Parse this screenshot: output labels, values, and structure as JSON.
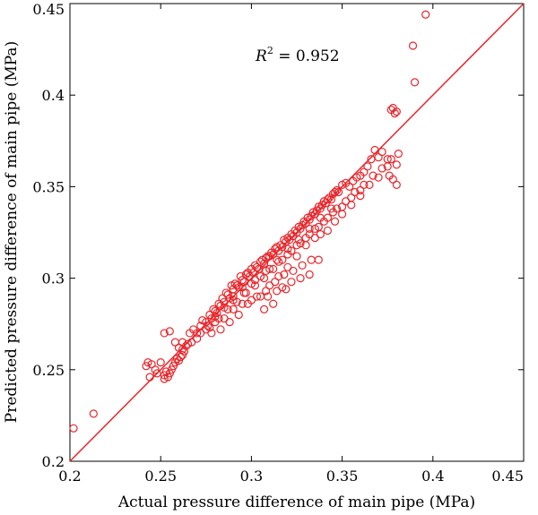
{
  "chart_data": {
    "type": "scatter",
    "title": "",
    "xlabel": "Actual pressure difference of main pipe (MPa)",
    "ylabel": "Predicted pressure difference of main pipe (MPa)",
    "xlim": [
      0.2,
      0.45
    ],
    "ylim": [
      0.2,
      0.45
    ],
    "xticks": [
      "0.2",
      "0.25",
      "0.3",
      "0.35",
      "0.4",
      "0.45"
    ],
    "yticks": [
      "0.2",
      "0.25",
      "0.3",
      "0.35",
      "0.4",
      "0.45"
    ],
    "grid": false,
    "annotation": {
      "prefix": "R",
      "superscript": "2",
      "suffix": " = 0.952"
    },
    "colors": {
      "points": "#e8262b",
      "reference_line": "#e8262b"
    },
    "reference_line": {
      "from": [
        0.2,
        0.2
      ],
      "to": [
        0.45,
        0.45
      ]
    },
    "series": [
      {
        "marker": "open-circle",
        "x": [
          0.202,
          0.213,
          0.242,
          0.243,
          0.245,
          0.244,
          0.247,
          0.248,
          0.25,
          0.252,
          0.252,
          0.253,
          0.254,
          0.255,
          0.256,
          0.257,
          0.258,
          0.259,
          0.26,
          0.261,
          0.262,
          0.263,
          0.252,
          0.255,
          0.258,
          0.26,
          0.262,
          0.264,
          0.266,
          0.268,
          0.27,
          0.272,
          0.273,
          0.275,
          0.276,
          0.277,
          0.278,
          0.279,
          0.28,
          0.281,
          0.282,
          0.283,
          0.284,
          0.285,
          0.286,
          0.287,
          0.288,
          0.289,
          0.29,
          0.291,
          0.292,
          0.293,
          0.294,
          0.295,
          0.296,
          0.297,
          0.298,
          0.299,
          0.3,
          0.301,
          0.302,
          0.303,
          0.304,
          0.305,
          0.306,
          0.307,
          0.308,
          0.309,
          0.31,
          0.311,
          0.312,
          0.313,
          0.314,
          0.315,
          0.316,
          0.317,
          0.318,
          0.319,
          0.32,
          0.321,
          0.322,
          0.323,
          0.324,
          0.325,
          0.326,
          0.327,
          0.328,
          0.329,
          0.33,
          0.331,
          0.332,
          0.333,
          0.334,
          0.335,
          0.336,
          0.337,
          0.338,
          0.339,
          0.34,
          0.341,
          0.342,
          0.343,
          0.344,
          0.345,
          0.346,
          0.347,
          0.348,
          0.35,
          0.352,
          0.354,
          0.356,
          0.358,
          0.36,
          0.362,
          0.364,
          0.366,
          0.368,
          0.37,
          0.372,
          0.375,
          0.377,
          0.378,
          0.379,
          0.38,
          0.381,
          0.375,
          0.376,
          0.378,
          0.38,
          0.38,
          0.389,
          0.39,
          0.396,
          0.28,
          0.285,
          0.29,
          0.295,
          0.3,
          0.305,
          0.31,
          0.315,
          0.32,
          0.325,
          0.33,
          0.335,
          0.338,
          0.342,
          0.346,
          0.35,
          0.355,
          0.36,
          0.365,
          0.37,
          0.278,
          0.283,
          0.288,
          0.293,
          0.298,
          0.303,
          0.308,
          0.313,
          0.318,
          0.323,
          0.328,
          0.333,
          0.307,
          0.312,
          0.317,
          0.322,
          0.327,
          0.332,
          0.337,
          0.309,
          0.314,
          0.319,
          0.265,
          0.27,
          0.275,
          0.28,
          0.285,
          0.29,
          0.295,
          0.3,
          0.305,
          0.31,
          0.315,
          0.32,
          0.325,
          0.33,
          0.335,
          0.34,
          0.345,
          0.35,
          0.355,
          0.36,
          0.262,
          0.267,
          0.272,
          0.277,
          0.282,
          0.287,
          0.292,
          0.297,
          0.302,
          0.307,
          0.312,
          0.317,
          0.322,
          0.327,
          0.332,
          0.337,
          0.342,
          0.347,
          0.352,
          0.357,
          0.362,
          0.367,
          0.372,
          0.377,
          0.29,
          0.296,
          0.302,
          0.308,
          0.314,
          0.32,
          0.326,
          0.332,
          0.338,
          0.344
        ],
        "y": [
          0.218,
          0.226,
          0.252,
          0.254,
          0.253,
          0.246,
          0.25,
          0.248,
          0.254,
          0.245,
          0.247,
          0.249,
          0.246,
          0.248,
          0.25,
          0.252,
          0.254,
          0.256,
          0.255,
          0.257,
          0.258,
          0.26,
          0.27,
          0.271,
          0.265,
          0.262,
          0.265,
          0.263,
          0.27,
          0.272,
          0.27,
          0.274,
          0.277,
          0.276,
          0.274,
          0.28,
          0.278,
          0.283,
          0.282,
          0.281,
          0.286,
          0.285,
          0.289,
          0.287,
          0.292,
          0.291,
          0.289,
          0.296,
          0.294,
          0.297,
          0.296,
          0.295,
          0.301,
          0.299,
          0.298,
          0.302,
          0.303,
          0.301,
          0.305,
          0.303,
          0.307,
          0.306,
          0.305,
          0.309,
          0.31,
          0.308,
          0.311,
          0.312,
          0.312,
          0.314,
          0.313,
          0.316,
          0.317,
          0.315,
          0.318,
          0.317,
          0.321,
          0.32,
          0.322,
          0.321,
          0.324,
          0.323,
          0.326,
          0.325,
          0.328,
          0.327,
          0.329,
          0.331,
          0.33,
          0.333,
          0.332,
          0.334,
          0.336,
          0.335,
          0.337,
          0.339,
          0.338,
          0.34,
          0.342,
          0.341,
          0.343,
          0.344,
          0.343,
          0.346,
          0.347,
          0.348,
          0.347,
          0.351,
          0.352,
          0.35,
          0.353,
          0.355,
          0.356,
          0.358,
          0.361,
          0.365,
          0.37,
          0.366,
          0.369,
          0.365,
          0.392,
          0.393,
          0.39,
          0.391,
          0.368,
          0.361,
          0.356,
          0.354,
          0.362,
          0.351,
          0.427,
          0.407,
          0.444,
          0.276,
          0.278,
          0.283,
          0.286,
          0.288,
          0.29,
          0.296,
          0.301,
          0.306,
          0.312,
          0.318,
          0.322,
          0.324,
          0.326,
          0.331,
          0.335,
          0.34,
          0.345,
          0.351,
          0.355,
          0.27,
          0.272,
          0.276,
          0.28,
          0.286,
          0.29,
          0.293,
          0.298,
          0.302,
          0.304,
          0.307,
          0.31,
          0.283,
          0.286,
          0.295,
          0.298,
          0.3,
          0.302,
          0.31,
          0.29,
          0.293,
          0.294,
          0.264,
          0.267,
          0.272,
          0.279,
          0.284,
          0.29,
          0.295,
          0.297,
          0.301,
          0.305,
          0.309,
          0.313,
          0.318,
          0.322,
          0.327,
          0.331,
          0.336,
          0.339,
          0.344,
          0.348,
          0.261,
          0.265,
          0.27,
          0.273,
          0.278,
          0.283,
          0.287,
          0.292,
          0.296,
          0.3,
          0.305,
          0.31,
          0.315,
          0.319,
          0.324,
          0.328,
          0.333,
          0.338,
          0.342,
          0.347,
          0.351,
          0.356,
          0.36,
          0.365,
          0.288,
          0.292,
          0.299,
          0.304,
          0.31,
          0.316,
          0.321,
          0.327,
          0.333,
          0.338
        ]
      }
    ]
  }
}
